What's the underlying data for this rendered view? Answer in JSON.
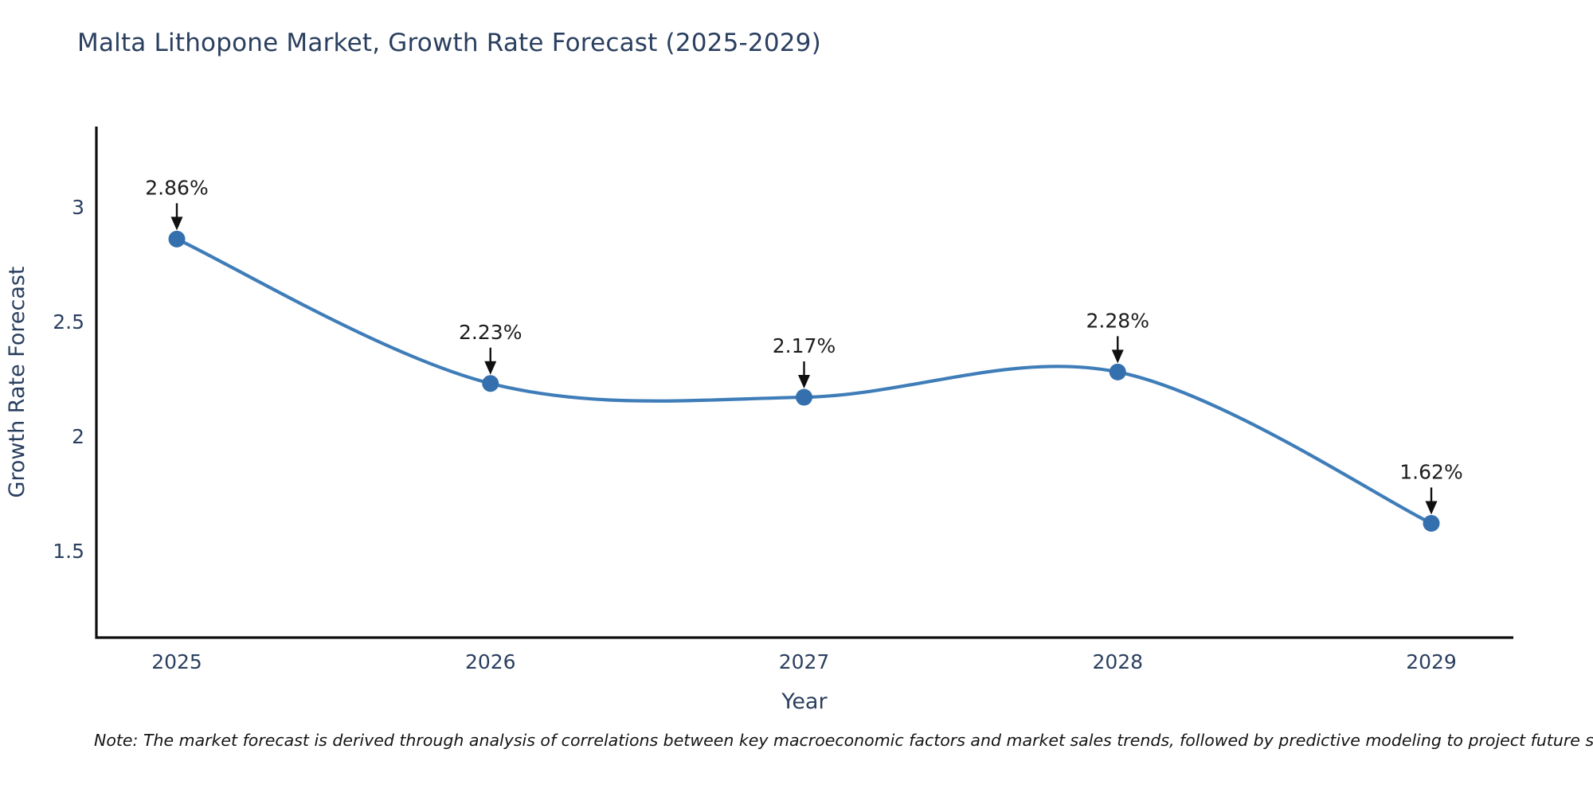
{
  "title": "Malta Lithopone Market, Growth Rate Forecast (2025-2029)",
  "note": "Note: The market forecast is derived through analysis of correlations between key macroeconomic factors and market sales trends, followed by predictive modeling to project future sales",
  "colors": {
    "title_text": "#2a3f5f",
    "axis_text": "#2a3f5f",
    "axis_line": "#0d0d0d",
    "series_line": "#3f7db9",
    "marker": "#3470ad",
    "annotation": "#1c1c1c",
    "background": "#ffffff"
  },
  "chart_data": {
    "type": "line",
    "title": "Malta Lithopone Market, Growth Rate Forecast (2025-2029)",
    "xlabel": "Year",
    "ylabel": "Growth Rate Forecast",
    "x": [
      2025,
      2026,
      2027,
      2028,
      2029
    ],
    "values": [
      2.86,
      2.23,
      2.17,
      2.28,
      1.62
    ],
    "point_labels": [
      "2.86%",
      "2.23%",
      "2.17%",
      "2.28%",
      "1.62%"
    ],
    "xtick_labels": [
      "2025",
      "2026",
      "2027",
      "2028",
      "2029"
    ],
    "ytick_values": [
      1.5,
      2,
      2.5,
      3
    ],
    "ytick_labels": [
      "1.5",
      "2",
      "2.5",
      "3"
    ],
    "ylim": [
      1.12,
      3.35
    ],
    "line_shape": "spline",
    "markers": true,
    "grid": false,
    "legend_position": "none",
    "annotation_arrows": true
  }
}
